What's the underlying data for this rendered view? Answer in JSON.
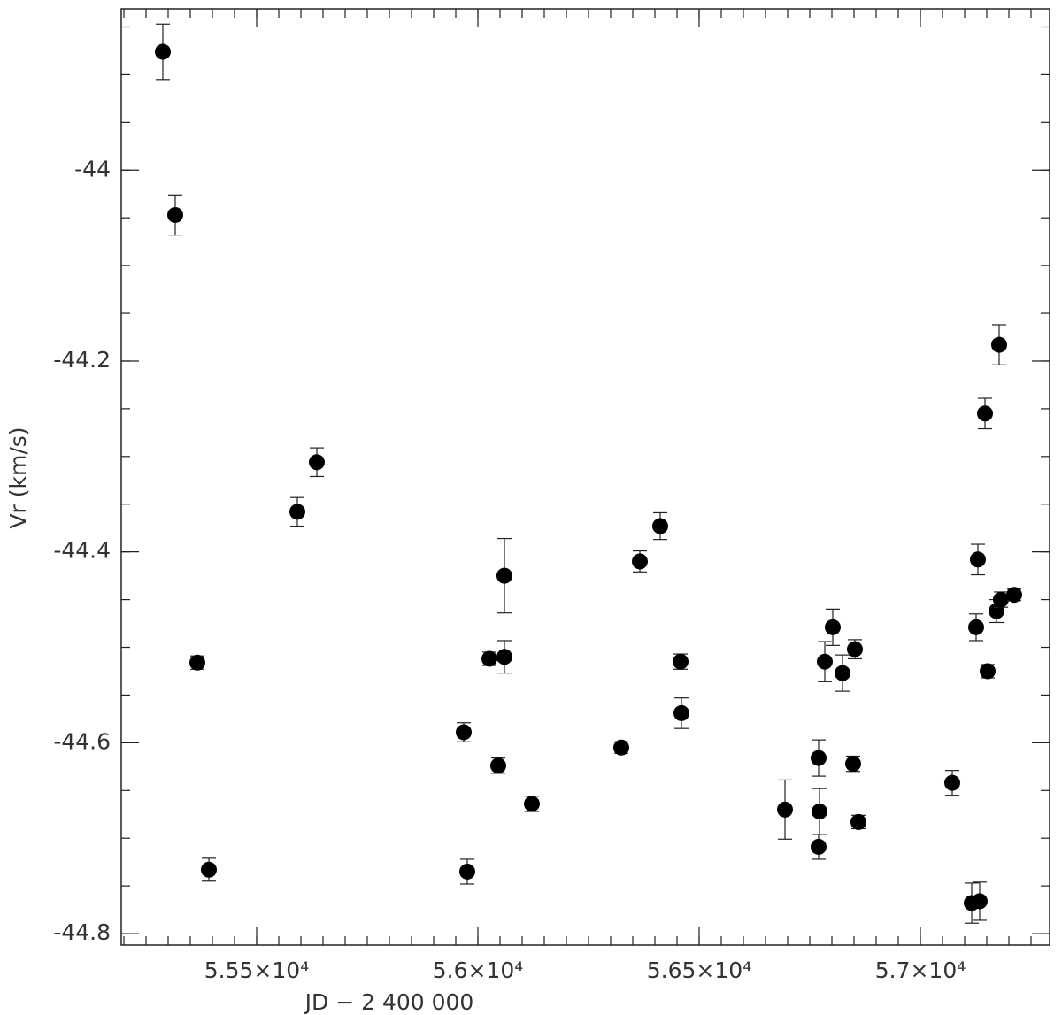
{
  "chart_data": {
    "type": "scatter",
    "xlabel": "JD − 2 400 000",
    "ylabel": "Vr (km/s)",
    "color": "#000000",
    "x": [
      55288,
      55316,
      55366,
      55392,
      55592,
      55636,
      55968,
      55976,
      56026,
      56046,
      56060,
      56060,
      56122,
      56324,
      56366,
      56412,
      56458,
      56460,
      56694,
      56770,
      56772,
      56770,
      56784,
      56802,
      56824,
      56848,
      56852,
      56860,
      57072,
      57116,
      57134,
      57126,
      57130,
      57152,
      57146,
      57178,
      57172,
      57182,
      57212
    ],
    "values": [
      -43.876,
      -44.047,
      -44.516,
      -44.733,
      -44.358,
      -44.306,
      -44.589,
      -44.735,
      -44.512,
      -44.624,
      -44.51,
      -44.425,
      -44.664,
      -44.605,
      -44.41,
      -44.373,
      -44.515,
      -44.569,
      -44.67,
      -44.616,
      -44.672,
      -44.709,
      -44.515,
      -44.479,
      -44.527,
      -44.622,
      -44.502,
      -44.683,
      -44.642,
      -44.768,
      -44.766,
      -44.479,
      -44.408,
      -44.525,
      -44.255,
      -44.183,
      -44.462,
      -44.45,
      -44.445
    ],
    "errors": [
      0.029,
      0.021,
      0.007,
      0.012,
      0.015,
      0.015,
      0.01,
      0.013,
      0.007,
      0.008,
      0.017,
      0.039,
      0.008,
      0.006,
      0.011,
      0.014,
      0.008,
      0.016,
      0.031,
      0.019,
      0.024,
      0.013,
      0.021,
      0.019,
      0.019,
      0.008,
      0.01,
      0.007,
      0.013,
      0.021,
      0.02,
      0.014,
      0.016,
      0.007,
      0.016,
      0.021,
      0.012,
      0.008,
      0.006
    ],
    "xlim": [
      55194,
      57292
    ],
    "ylim": [
      -44.812,
      -43.831
    ],
    "xticks": [
      {
        "value": 55500,
        "label": "5.55×10⁴"
      },
      {
        "value": 56000,
        "label": "5.6×10⁴"
      },
      {
        "value": 56500,
        "label": "5.65×10⁴"
      },
      {
        "value": 57000,
        "label": "5.7×10⁴"
      }
    ],
    "yticks": [
      -44.8,
      -44.6,
      -44.4,
      -44.2,
      -44
    ]
  }
}
